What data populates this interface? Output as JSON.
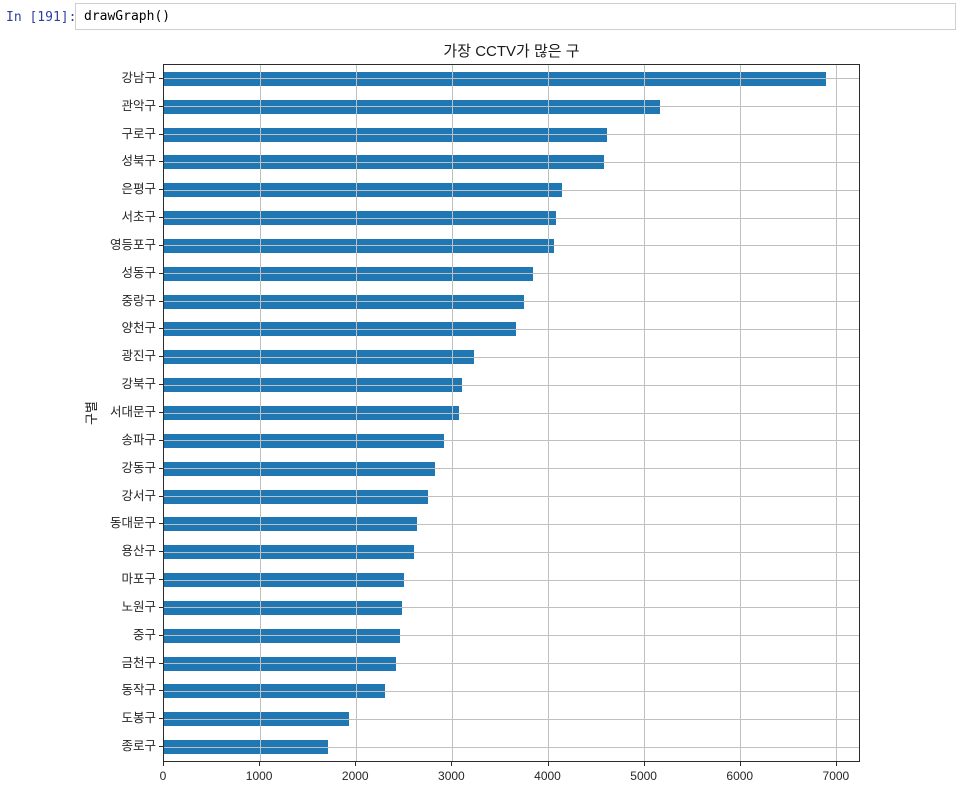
{
  "notebook": {
    "prompt": "In [191]:",
    "prompt_color": "#303f9f",
    "code": "drawGraph()"
  },
  "chart_data": {
    "type": "bar",
    "orientation": "horizontal",
    "title": "가장 CCTV가 많은 구",
    "xlabel": "",
    "ylabel": "구별",
    "categories": [
      "강남구",
      "관악구",
      "구로구",
      "성북구",
      "은평구",
      "서초구",
      "영등포구",
      "성동구",
      "중랑구",
      "양천구",
      "광진구",
      "강북구",
      "서대문구",
      "송파구",
      "강동구",
      "강서구",
      "동대문구",
      "용산구",
      "마포구",
      "노원구",
      "중구",
      "금천구",
      "동작구",
      "도봉구",
      "종로구"
    ],
    "values": [
      6890,
      5160,
      4610,
      4580,
      4140,
      4080,
      4060,
      3840,
      3750,
      3660,
      3230,
      3100,
      3070,
      2910,
      2820,
      2750,
      2630,
      2600,
      2500,
      2480,
      2450,
      2410,
      2300,
      1920,
      1710
    ],
    "xlim": [
      0,
      7230
    ],
    "xticks": [
      0,
      1000,
      2000,
      3000,
      4000,
      5000,
      6000,
      7000
    ],
    "grid": true,
    "legend": false,
    "bar_color": "#1f77b4",
    "grid_color": "#c0c0c0",
    "sort": "descending"
  }
}
